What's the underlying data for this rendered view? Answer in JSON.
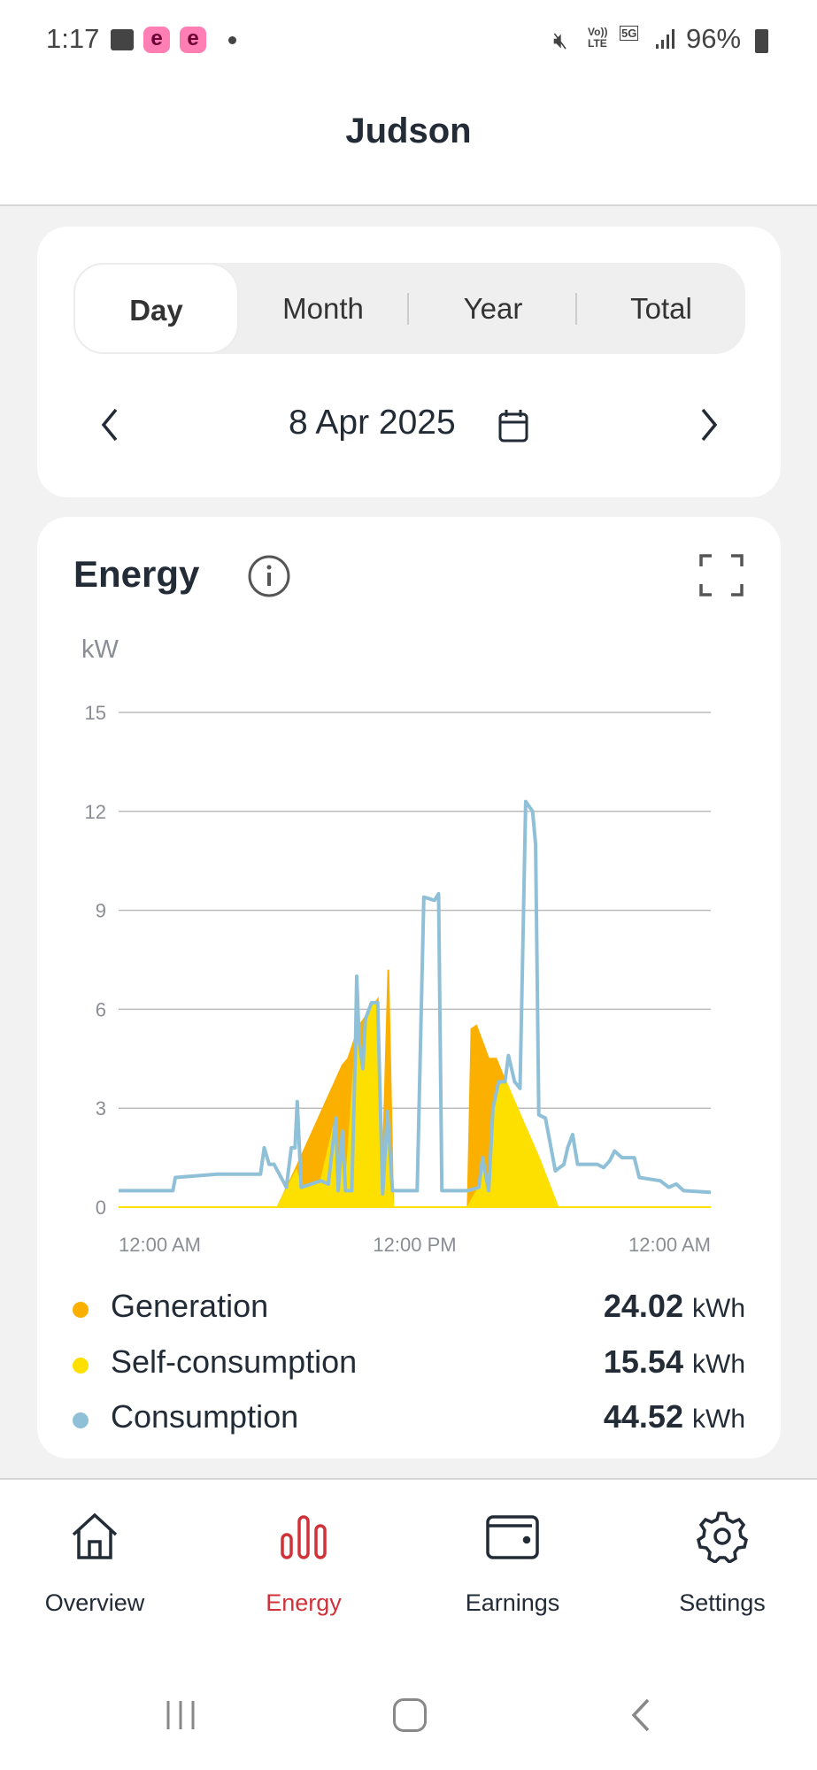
{
  "status_bar": {
    "time": "1:17",
    "battery": "96%",
    "network": "5G",
    "volte": "Vo)) LTE",
    "app_badge": "e"
  },
  "header": {
    "title": "Judson"
  },
  "period_tabs": [
    {
      "label": "Day",
      "active": true
    },
    {
      "label": "Month"
    },
    {
      "label": "Year"
    },
    {
      "label": "Total"
    }
  ],
  "date_nav": {
    "date": "8 Apr 2025"
  },
  "energy_card": {
    "title": "Energy",
    "unit_label": "kW"
  },
  "legend": [
    {
      "label": "Generation",
      "value": "24.02",
      "unit": "kWh",
      "color": "#fbb000"
    },
    {
      "label": "Self-consumption",
      "value": "15.54",
      "unit": "kWh",
      "color": "#fde000"
    },
    {
      "label": "Consumption",
      "value": "44.52",
      "unit": "kWh",
      "color": "#8fc0d8"
    }
  ],
  "chart_data": {
    "type": "area",
    "xlabel": "",
    "ylabel": "kW",
    "ylim": [
      0,
      15
    ],
    "xlim": [
      0,
      24
    ],
    "yticks": [
      "0",
      "3",
      "6",
      "9",
      "12",
      "15"
    ],
    "xticks": [
      {
        "x": 0,
        "label": "12:00 AM"
      },
      {
        "x": 12,
        "label": "12:00 PM"
      },
      {
        "x": 24,
        "label": "12:00 AM"
      }
    ],
    "grid": true,
    "series": [
      {
        "name": "Generation",
        "color": "#fbb000",
        "points": [
          [
            0,
            0
          ],
          [
            6.44,
            0
          ],
          [
            7.2,
            1.2
          ],
          [
            9.07,
            4.3
          ],
          [
            9.3,
            4.5
          ],
          [
            9.75,
            5.5
          ],
          [
            10.5,
            6.3
          ],
          [
            10.68,
            0.5
          ],
          [
            10.93,
            7.2
          ],
          [
            11.13,
            0
          ],
          [
            14.15,
            0
          ],
          [
            14.3,
            5.4
          ],
          [
            14.5,
            5.5
          ],
          [
            15,
            4.5
          ],
          [
            15.3,
            4.5
          ],
          [
            15.68,
            3.8
          ],
          [
            16.27,
            2.8
          ],
          [
            17.03,
            1.5
          ],
          [
            17.8,
            0
          ],
          [
            24,
            0
          ]
        ]
      },
      {
        "name": "Self-consumption",
        "color": "#fde000",
        "points": [
          [
            0,
            0
          ],
          [
            6.44,
            0
          ],
          [
            7.2,
            1.1
          ],
          [
            7.4,
            0.6
          ],
          [
            8.2,
            0.8
          ],
          [
            8.8,
            2.7
          ],
          [
            8.9,
            0.5
          ],
          [
            9.07,
            2.3
          ],
          [
            9.2,
            0.5
          ],
          [
            9.6,
            4.9
          ],
          [
            9.7,
            5.0
          ],
          [
            9.9,
            4.2
          ],
          [
            10,
            5.7
          ],
          [
            10.3,
            6.2
          ],
          [
            10.5,
            6.2
          ],
          [
            10.7,
            0.4
          ],
          [
            10.9,
            2.9
          ],
          [
            11.13,
            0
          ],
          [
            14.15,
            0
          ],
          [
            14.6,
            0.6
          ],
          [
            14.75,
            1.5
          ],
          [
            15,
            0.5
          ],
          [
            15.17,
            3.0
          ],
          [
            15.4,
            3.8
          ],
          [
            15.7,
            3.8
          ],
          [
            16.27,
            2.8
          ],
          [
            17.03,
            1.5
          ],
          [
            17.8,
            0
          ],
          [
            24,
            0
          ]
        ]
      },
      {
        "name": "Consumption",
        "color": "#8fc0d8",
        "points": [
          [
            0,
            0.5
          ],
          [
            2.2,
            0.5
          ],
          [
            2.3,
            0.9
          ],
          [
            4,
            1.0
          ],
          [
            5.75,
            1.0
          ],
          [
            5.9,
            1.8
          ],
          [
            6.1,
            1.3
          ],
          [
            6.3,
            1.3
          ],
          [
            6.8,
            0.6
          ],
          [
            7.0,
            1.8
          ],
          [
            7.15,
            1.8
          ],
          [
            7.24,
            3.2
          ],
          [
            7.4,
            0.6
          ],
          [
            8.2,
            0.8
          ],
          [
            8.5,
            0.7
          ],
          [
            8.8,
            2.7
          ],
          [
            8.9,
            0.5
          ],
          [
            9.07,
            2.3
          ],
          [
            9.2,
            0.5
          ],
          [
            9.45,
            0.5
          ],
          [
            9.6,
            4.9
          ],
          [
            9.65,
            7.0
          ],
          [
            9.75,
            5.0
          ],
          [
            9.9,
            4.2
          ],
          [
            10,
            5.7
          ],
          [
            10.25,
            6.2
          ],
          [
            10.5,
            6.2
          ],
          [
            10.7,
            0.4
          ],
          [
            10.9,
            2.9
          ],
          [
            11.1,
            0.5
          ],
          [
            12.1,
            0.5
          ],
          [
            12.37,
            9.4
          ],
          [
            12.8,
            9.3
          ],
          [
            12.97,
            9.5
          ],
          [
            13.1,
            0.5
          ],
          [
            14.15,
            0.5
          ],
          [
            14.6,
            0.6
          ],
          [
            14.75,
            1.5
          ],
          [
            15.0,
            0.5
          ],
          [
            15.17,
            3.0
          ],
          [
            15.4,
            3.8
          ],
          [
            15.66,
            3.8
          ],
          [
            15.8,
            4.6
          ],
          [
            16.05,
            3.8
          ],
          [
            16.27,
            3.6
          ],
          [
            16.5,
            12.3
          ],
          [
            16.78,
            12.0
          ],
          [
            16.9,
            11.0
          ],
          [
            17.03,
            2.8
          ],
          [
            17.3,
            2.7
          ],
          [
            17.5,
            1.9
          ],
          [
            17.7,
            1.1
          ],
          [
            18.05,
            1.3
          ],
          [
            18.2,
            1.8
          ],
          [
            18.4,
            2.2
          ],
          [
            18.6,
            1.3
          ],
          [
            19.4,
            1.3
          ],
          [
            19.66,
            1.2
          ],
          [
            19.9,
            1.4
          ],
          [
            20.1,
            1.7
          ],
          [
            20.4,
            1.5
          ],
          [
            20.9,
            1.5
          ],
          [
            21.1,
            0.9
          ],
          [
            21.95,
            0.8
          ],
          [
            22.3,
            0.6
          ],
          [
            22.6,
            0.7
          ],
          [
            22.9,
            0.5
          ],
          [
            24,
            0.45
          ]
        ]
      }
    ]
  },
  "bottom_nav": [
    {
      "label": "Overview",
      "icon": "home-icon"
    },
    {
      "label": "Energy",
      "icon": "bar-chart-icon",
      "active": true
    },
    {
      "label": "Earnings",
      "icon": "wallet-icon"
    },
    {
      "label": "Settings",
      "icon": "gear-icon"
    }
  ],
  "colors": {
    "accent": "#d0323a",
    "text": "#222b36"
  }
}
